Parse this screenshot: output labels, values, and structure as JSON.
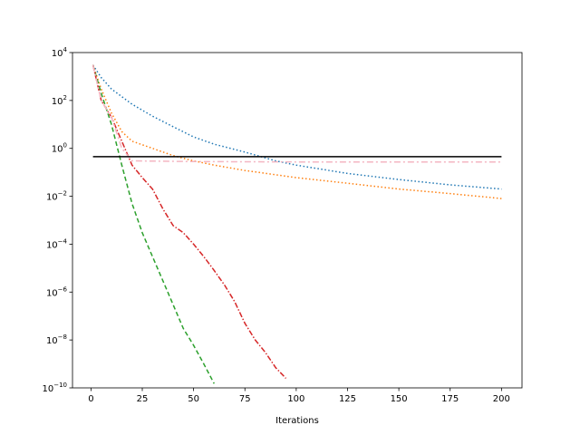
{
  "chart_data": {
    "type": "line",
    "title": "",
    "xlabel": "Iterations",
    "ylabel": "",
    "yscale": "log",
    "xlim": [
      -9,
      210
    ],
    "ylim_exp": [
      -10,
      4
    ],
    "xticks": [
      0,
      25,
      50,
      75,
      100,
      125,
      150,
      175,
      200
    ],
    "yticks": [
      {
        "base": "10",
        "exp": "4",
        "value_exp": 4
      },
      {
        "base": "10",
        "exp": "2",
        "value_exp": 2
      },
      {
        "base": "10",
        "exp": "0",
        "value_exp": 0
      },
      {
        "base": "10",
        "exp": "−2",
        "value_exp": -2
      },
      {
        "base": "10",
        "exp": "−4",
        "value_exp": -4
      },
      {
        "base": "10",
        "exp": "−6",
        "value_exp": -6
      },
      {
        "base": "10",
        "exp": "−8",
        "value_exp": -8
      },
      {
        "base": "10",
        "exp": "−10",
        "value_exp": -10
      }
    ],
    "grid": false,
    "legend": "none",
    "series": [
      {
        "color": "#1f77b4",
        "dash": "1.5,2.5",
        "points": [
          [
            1,
            3000
          ],
          [
            5,
            900
          ],
          [
            10,
            300
          ],
          [
            20,
            70
          ],
          [
            30,
            22
          ],
          [
            40,
            8
          ],
          [
            50,
            3
          ],
          [
            60,
            1.5
          ],
          [
            75,
            0.7
          ],
          [
            90,
            0.3
          ],
          [
            100,
            0.2
          ],
          [
            125,
            0.09
          ],
          [
            150,
            0.05
          ],
          [
            175,
            0.03
          ],
          [
            200,
            0.02
          ]
        ]
      },
      {
        "color": "#ff7f0e",
        "dash": "1.5,2.5",
        "points": [
          [
            1,
            3000
          ],
          [
            5,
            300
          ],
          [
            10,
            30
          ],
          [
            15,
            5
          ],
          [
            20,
            2
          ],
          [
            30,
            1
          ],
          [
            40,
            0.5
          ],
          [
            50,
            0.3
          ],
          [
            60,
            0.2
          ],
          [
            75,
            0.12
          ],
          [
            100,
            0.06
          ],
          [
            125,
            0.035
          ],
          [
            150,
            0.02
          ],
          [
            175,
            0.013
          ],
          [
            200,
            0.008
          ]
        ]
      },
      {
        "color": "#2ca02c",
        "dash": "5,3",
        "points": [
          [
            1,
            3000
          ],
          [
            5,
            200
          ],
          [
            10,
            10
          ],
          [
            15,
            0.2
          ],
          [
            20,
            0.005
          ],
          [
            25,
            0.0003
          ],
          [
            30,
            3e-05
          ],
          [
            35,
            3e-06
          ],
          [
            40,
            3e-07
          ],
          [
            45,
            3e-08
          ],
          [
            50,
            6e-09
          ],
          [
            55,
            1e-09
          ],
          [
            60,
            1.5e-10
          ],
          [
            65,
            2e-11
          ],
          [
            67,
            1e-11
          ]
        ]
      },
      {
        "color": "#d62728",
        "dash": "6,2,1.5,2",
        "points": [
          [
            1,
            3000
          ],
          [
            5,
            100
          ],
          [
            10,
            20
          ],
          [
            15,
            2
          ],
          [
            20,
            0.2
          ],
          [
            25,
            0.06
          ],
          [
            30,
            0.02
          ],
          [
            35,
            0.003
          ],
          [
            40,
            0.0006
          ],
          [
            45,
            0.0003
          ],
          [
            50,
            0.0001
          ],
          [
            55,
            3e-05
          ],
          [
            60,
            8e-06
          ],
          [
            65,
            2e-06
          ],
          [
            70,
            4e-07
          ],
          [
            75,
            5e-08
          ],
          [
            80,
            1e-08
          ],
          [
            85,
            3e-09
          ],
          [
            90,
            7e-10
          ],
          [
            95,
            2.5e-10
          ],
          [
            100,
            7e-11
          ],
          [
            105,
            2e-11
          ],
          [
            108,
            1e-11
          ]
        ]
      },
      {
        "color": "#f4b6c2",
        "dash": "7,3,2,3",
        "points": [
          [
            1,
            3000
          ],
          [
            5,
            100
          ],
          [
            10,
            20
          ],
          [
            15,
            1
          ],
          [
            20,
            0.3
          ],
          [
            50,
            0.28
          ],
          [
            100,
            0.27
          ],
          [
            150,
            0.27
          ],
          [
            200,
            0.27
          ]
        ]
      },
      {
        "color": "#000000",
        "dash": "",
        "points": [
          [
            1,
            0.45
          ],
          [
            200,
            0.45
          ]
        ]
      }
    ]
  }
}
